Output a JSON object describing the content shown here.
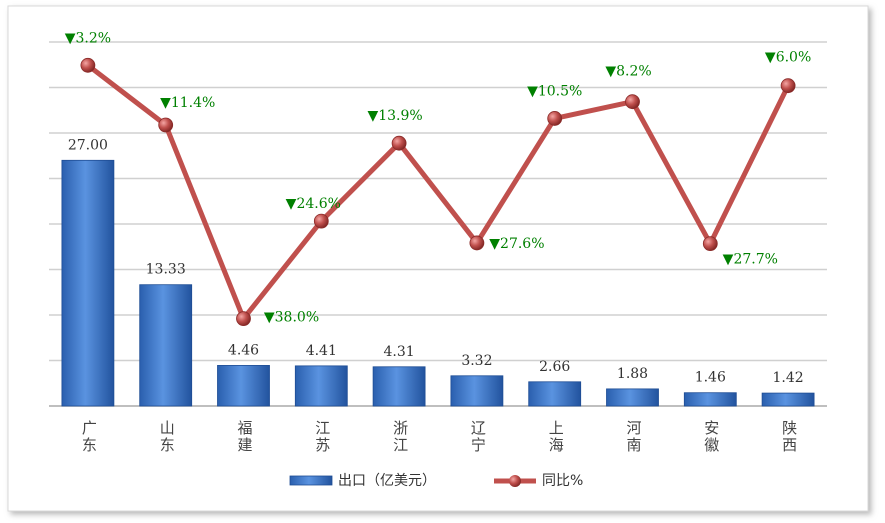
{
  "chart_data": {
    "type": "bar",
    "categories": [
      "广东",
      "山东",
      "福建",
      "江苏",
      "浙江",
      "辽宁",
      "上海",
      "河南",
      "安徽",
      "陕西"
    ],
    "series": [
      {
        "name": "出口（亿美元）",
        "type": "bar",
        "color": "#3a73c8",
        "values": [
          27.0,
          13.33,
          4.46,
          4.41,
          4.31,
          3.32,
          2.66,
          1.88,
          1.46,
          1.42
        ],
        "value_labels": [
          "27.00",
          "13.33",
          "4.46",
          "4.41",
          "4.31",
          "3.32",
          "2.66",
          "1.88",
          "1.46",
          "1.42"
        ]
      },
      {
        "name": "同比%",
        "type": "line",
        "axis": "y2",
        "color": "#c0504d",
        "values": [
          -3.2,
          -11.4,
          -38.0,
          -24.6,
          -13.9,
          -27.6,
          -10.5,
          -8.2,
          -27.7,
          -6.0
        ],
        "value_labels": [
          "▼3.2%",
          "▼11.4%",
          "▼38.0%",
          "▼24.6%",
          "▼13.9%",
          "▼27.6%",
          "▼10.5%",
          "▼8.2%",
          "▼27.7%",
          "▼6.0%"
        ]
      }
    ],
    "ylim": [
      0,
      40
    ],
    "yticks": [
      0,
      5,
      10,
      15,
      20,
      25,
      30,
      35,
      40
    ],
    "y2lim": [
      -50,
      0
    ],
    "grid": true
  }
}
